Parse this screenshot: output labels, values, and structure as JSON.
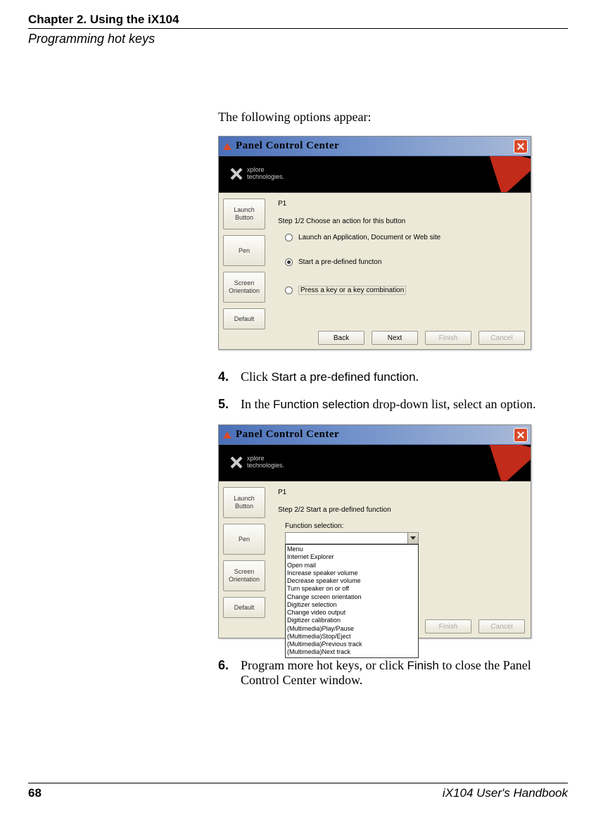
{
  "header": {
    "chapter": "Chapter 2. Using the iX104",
    "section": "Programming hot keys"
  },
  "intro": "The following options appear:",
  "window": {
    "title": "Panel Control Center",
    "logo_line1": "xplore",
    "logo_line2": "technologies.",
    "sidebar": {
      "launch": "Launch Button",
      "pen": "Pen",
      "screen": "Screen Orientation",
      "default": "Default"
    },
    "panel1": {
      "p1": "P1",
      "step": "Step 1/2     Choose an action for this button",
      "opt1": "Launch an Application, Document or Web site",
      "opt2": "Start a pre-defined functon",
      "opt3": "Press a key or a key combination"
    },
    "panel2": {
      "p1": "P1",
      "step": "Step 2/2     Start a pre-defined function",
      "label": "Function selection:",
      "options": [
        "Menu",
        "Internet Explorer",
        "Open mail",
        "Increase speaker volume",
        "Decrease speaker volume",
        "Turn speaker on or off",
        "Change screen orientation",
        "Digitizer selection",
        "Change video output",
        "Digitizer calibration",
        "(Multimedia)Play/Pause",
        "(Multimedia)Stop/Eject",
        "(Multimedia)Previous track",
        "(Multimedia)Next track"
      ]
    },
    "buttons": {
      "back": "Back",
      "next": "Next",
      "finish": "Finish",
      "cancel": "Cancel"
    }
  },
  "steps": {
    "s4_pre": "Click ",
    "s4_sans": "Start a pre-defined function",
    "s4_post": ".",
    "s5_pre": "In the ",
    "s5_sans": "Function selection",
    "s5_post": " drop-down list, select an option.",
    "s6_pre": "Program more hot keys, or click ",
    "s6_sans": "Finish",
    "s6_post": " to close the Panel Control Center window."
  },
  "footer": {
    "page": "68",
    "book": "iX104 User's Handbook"
  }
}
